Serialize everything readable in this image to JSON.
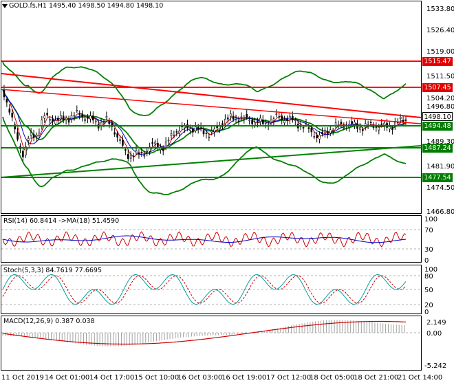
{
  "title": {
    "symbol": "GOLD.fs,H1",
    "open": "1495.40",
    "high": "1498.50",
    "low": "1494.80",
    "close": "1498.10"
  },
  "price_axis": [
    "1533.80",
    "1526.40",
    "1519.00",
    "1511.50",
    "1504.20",
    "1496.80",
    "1489.30",
    "1481.90",
    "1474.50",
    "1466.80"
  ],
  "price_tags": {
    "r1": "1515.47",
    "r2": "1507.45",
    "current": "1498.10",
    "s1": "1494.48",
    "s2": "1487.24",
    "s3": "1477.54"
  },
  "rsi": {
    "label": "RSI(14) 60.8414  ->MA(18) 51.4590",
    "ticks": [
      "100",
      "70",
      "30",
      "0"
    ]
  },
  "stoch": {
    "label": "Stoch(5,3,3) 84.7619 77.6695",
    "ticks": [
      "100",
      "80",
      "50",
      "20",
      "0"
    ]
  },
  "macd": {
    "label": "MACD(12,26,9) 0.387 0.038",
    "ticks": [
      "2.149",
      "0.00",
      "-5.242"
    ]
  },
  "time_axis": [
    "11 Oct 2019",
    "14 Oct 01:00",
    "14 Oct 17:00",
    "15 Oct 10:00",
    "16 Oct 03:00",
    "16 Oct 19:00",
    "17 Oct 12:00",
    "18 Oct 05:00",
    "18 Oct 21:00",
    "21 Oct 14:00"
  ],
  "colors": {
    "resistance": "#ff0000",
    "support": "#008000",
    "bollinger": "#008000",
    "candle": "#000000",
    "rsi": "#0000cc",
    "rsi_ma": "#cc0000",
    "stoch_main": "#00a0a0",
    "stoch_signal": "#cc0000",
    "macd_signal": "#cc0000",
    "macd_hist": "#a0a0a0"
  }
}
